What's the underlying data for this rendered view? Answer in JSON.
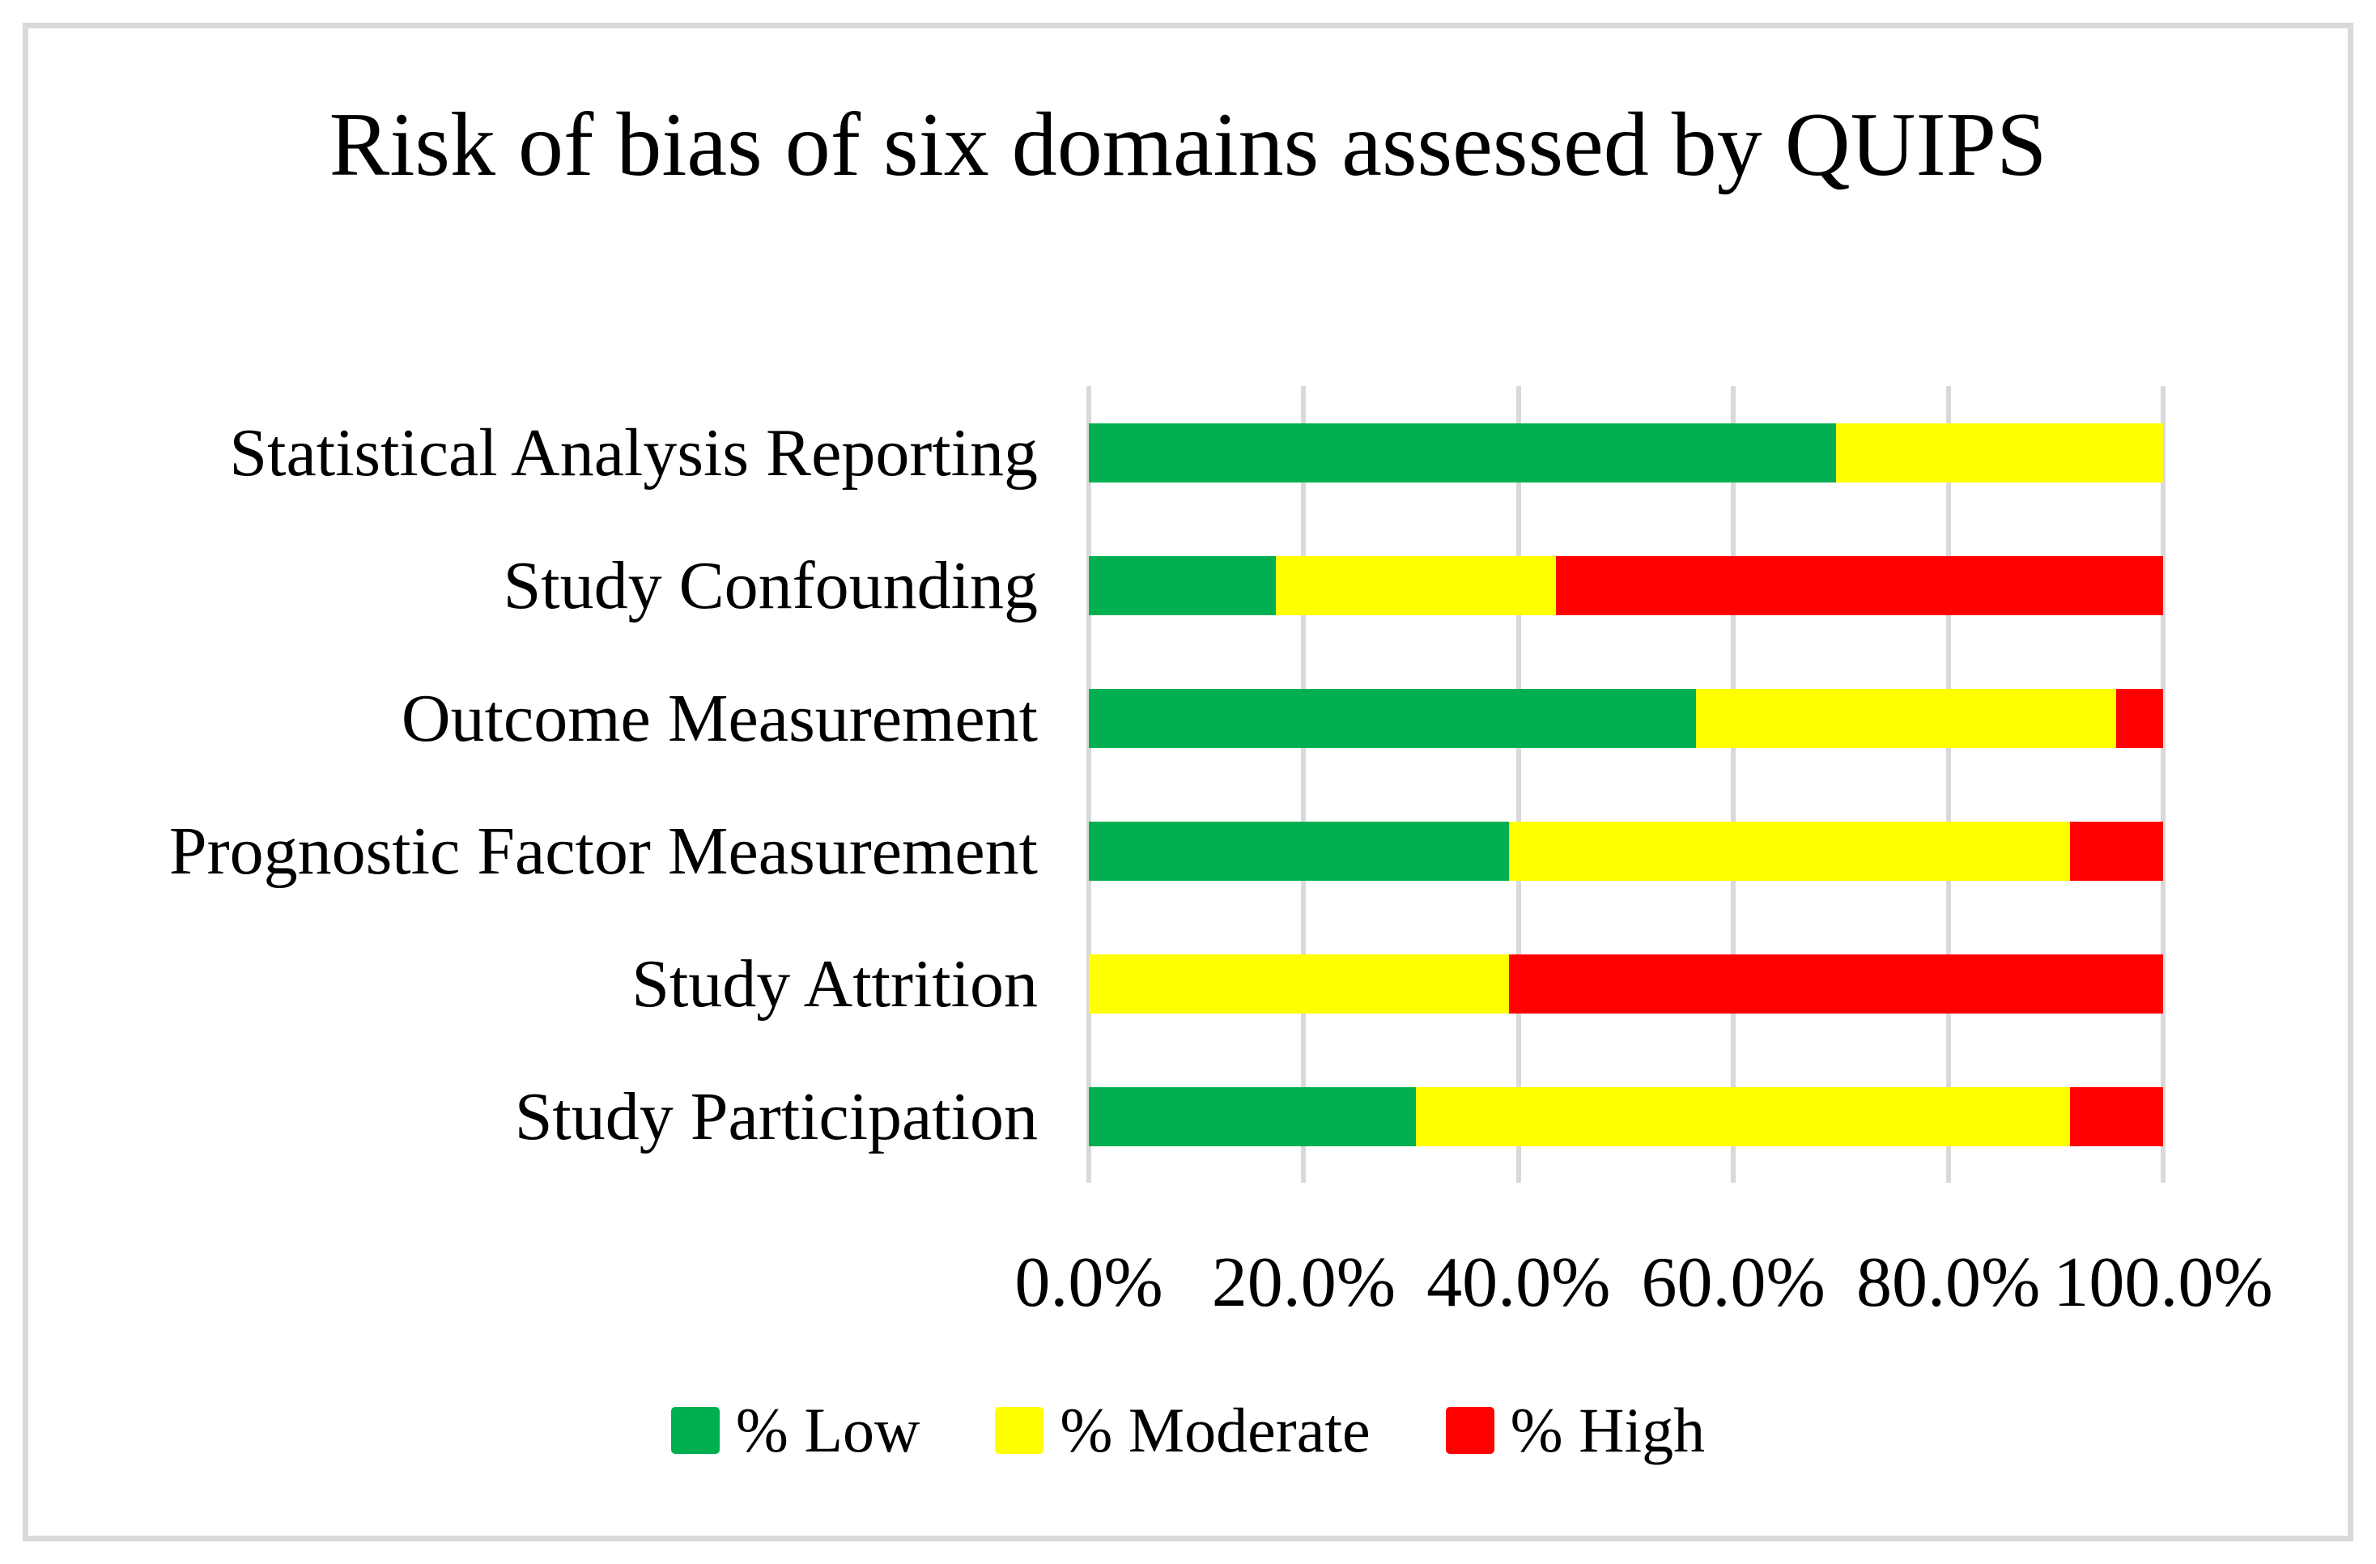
{
  "chart_data": {
    "type": "bar",
    "orientation": "horizontal",
    "stacked": true,
    "title": "Risk of bias of six domains assessed by QUIPS",
    "categories": [
      "Statistical Analysis Reporting",
      "Study Confounding",
      "Outcome Measurement",
      "Prognostic Factor Measurement",
      "Study Attrition",
      "Study Participation"
    ],
    "series": [
      {
        "name": "% Low",
        "color": "#00B050",
        "values": [
          69.57,
          17.39,
          56.52,
          39.13,
          0.0,
          30.43
        ]
      },
      {
        "name": "% Moderate",
        "color": "#FFFF00",
        "values": [
          30.43,
          26.09,
          39.13,
          52.17,
          39.13,
          60.87
        ]
      },
      {
        "name": "% High",
        "color": "#FF0000",
        "values": [
          0.0,
          56.52,
          4.35,
          8.7,
          60.87,
          8.7
        ]
      }
    ],
    "x_axis": {
      "min": 0,
      "max": 100,
      "tick_step": 20,
      "tick_labels": [
        "0.0%",
        "20.0%",
        "40.0%",
        "60.0%",
        "80.0%",
        "100.0%"
      ]
    },
    "legend": {
      "position": "bottom"
    },
    "grid": true,
    "styles": {
      "grid_color": "#D9D9D9",
      "frame_color": "#D9D9D9",
      "text_color": "#000000",
      "background": "#FFFFFF"
    }
  }
}
